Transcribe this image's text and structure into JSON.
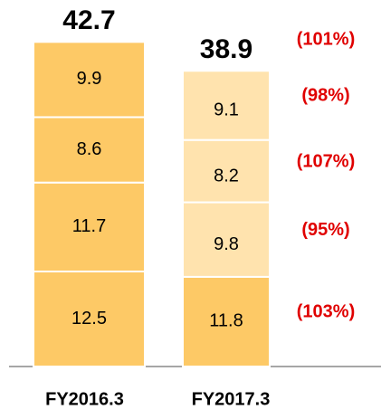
{
  "chart_data": {
    "type": "stacked_bar",
    "categories": [
      "FY2016.3",
      "FY2017.3"
    ],
    "series": [
      {
        "colors": [
          "#fdc966",
          "#fdc966"
        ],
        "values": [
          12.5,
          11.8
        ],
        "change_label": "(103%)"
      },
      {
        "colors": [
          "#fdc966",
          "#ffe3ae"
        ],
        "values": [
          11.7,
          9.8
        ],
        "change_label": "(95%)"
      },
      {
        "colors": [
          "#fdc966",
          "#ffe3ae"
        ],
        "values": [
          8.6,
          8.2
        ],
        "change_label": "(107%)"
      },
      {
        "colors": [
          "#fdc966",
          "#ffe3ae"
        ],
        "values": [
          9.9,
          9.1
        ],
        "change_label": "(98%)"
      }
    ],
    "totals": [
      42.7,
      38.9
    ],
    "total_change_label": "(101%)",
    "ylim": [
      0,
      45
    ]
  }
}
